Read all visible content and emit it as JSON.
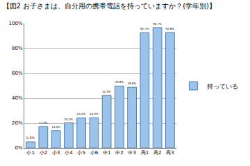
{
  "chart_data": {
    "type": "bar",
    "title": "【図2 お子さまは、自分用の携帯電話を持っていますか？(学年別)】",
    "categories": [
      "小1",
      "小2",
      "小3",
      "小4",
      "小5",
      "小6",
      "中1",
      "中2",
      "中3",
      "高1",
      "高2",
      "高3"
    ],
    "series": [
      {
        "name": "持っている",
        "color": "#9cc3ea",
        "values": [
          5.0,
          17.3,
          14.0,
          20.2,
          24.2,
          24.3,
          42.3,
          49.8,
          48.8,
          92.7,
          96.7,
          92.8
        ],
        "value_labels": [
          "5.0%",
          "17.3%",
          "14.0%",
          "20.2%",
          "24.2%",
          "24.3%",
          "42.3%",
          "49.8%",
          "48.8%",
          "92.7%",
          "96.7%",
          "92.8%"
        ]
      }
    ],
    "ylim": [
      0,
      100
    ],
    "yticks": [
      {
        "value": 0,
        "label": "0%"
      },
      {
        "value": 20,
        "label": "20%"
      },
      {
        "value": 40,
        "label": "40%"
      },
      {
        "value": 60,
        "label": "60%"
      },
      {
        "value": 80,
        "label": "80%"
      },
      {
        "value": 100,
        "label": "100%"
      }
    ],
    "grid": true,
    "legend": "right",
    "data_labels": true
  }
}
